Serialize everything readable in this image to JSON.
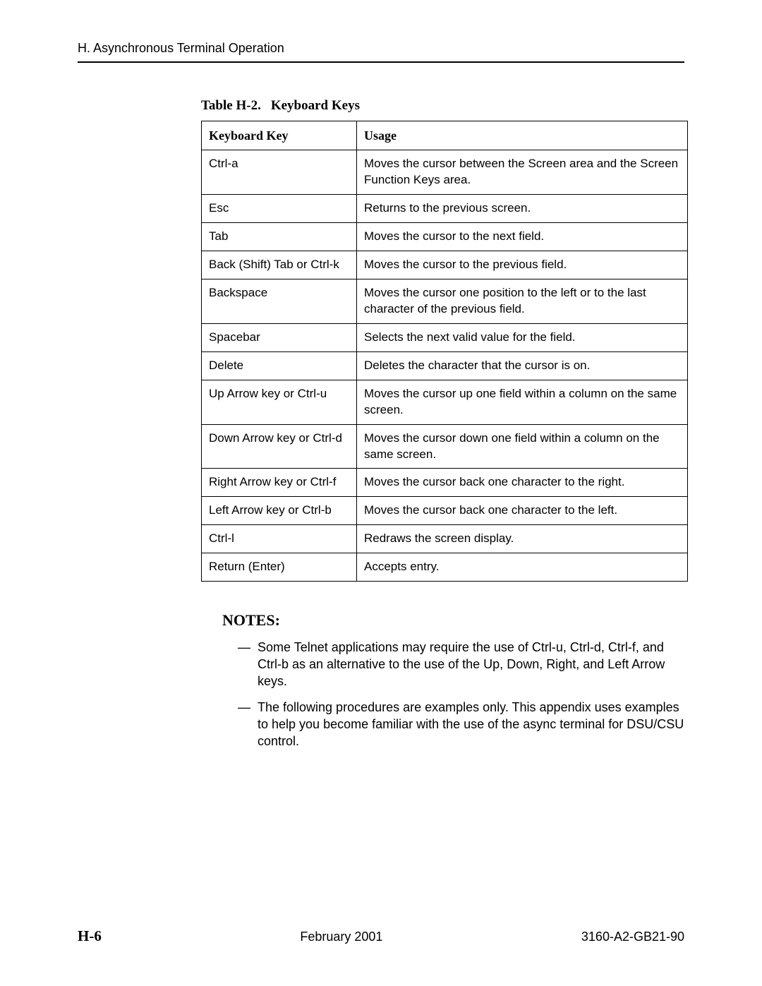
{
  "header": {
    "running_head": "H. Asynchronous Terminal Operation"
  },
  "table": {
    "caption_prefix": "Table H-2.",
    "caption_title": "Keyboard Keys",
    "columns": [
      "Keyboard Key",
      "Usage"
    ],
    "rows": [
      [
        "Ctrl-a",
        "Moves the cursor between the Screen area and the Screen Function Keys area."
      ],
      [
        "Esc",
        "Returns to the previous screen."
      ],
      [
        "Tab",
        "Moves the cursor to the next field."
      ],
      [
        "Back (Shift) Tab or Ctrl-k",
        "Moves the cursor to the previous field."
      ],
      [
        "Backspace",
        "Moves the cursor one position to the left or to the last character of the previous field."
      ],
      [
        "Spacebar",
        "Selects the next valid value for the field."
      ],
      [
        "Delete",
        "Deletes the character that the cursor is on."
      ],
      [
        "Up Arrow key or Ctrl-u",
        "Moves the cursor up one field within a column on the same screen."
      ],
      [
        "Down Arrow key or Ctrl-d",
        "Moves the cursor down one field within a column on the same screen."
      ],
      [
        "Right Arrow key or Ctrl-f",
        "Moves the cursor back one character to the right."
      ],
      [
        "Left Arrow key or Ctrl-b",
        "Moves the cursor back one character to the left."
      ],
      [
        "Ctrl-l",
        "Redraws the screen display."
      ],
      [
        "Return (Enter)",
        "Accepts entry."
      ]
    ]
  },
  "notes": {
    "heading": "NOTES:",
    "items": [
      "Some Telnet applications may require the use of Ctrl-u, Ctrl-d, Ctrl-f, and Ctrl-b as an alternative to the use of the Up, Down, Right, and Left Arrow keys.",
      "The following procedures are examples only. This appendix uses examples to help you become familiar with the use of the async terminal for DSU/CSU control."
    ]
  },
  "footer": {
    "page_number": "H-6",
    "date": "February 2001",
    "doc_id": "3160-A2-GB21-90"
  }
}
